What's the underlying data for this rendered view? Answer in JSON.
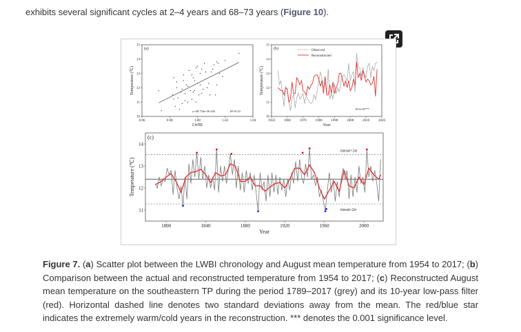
{
  "intro": {
    "text_before": "exhibits several significant cycles at 2–4 years and 68–73 years (",
    "link": "Figure 10",
    "text_after": ")."
  },
  "popout_button": {
    "icon": "external-link-icon"
  },
  "caption": {
    "label": "Figure 7.",
    "parts": [
      {
        "bold": "a",
        "text": " Scatter plot between the LWBI chronology and August mean temperature from 1954 to 2017; "
      },
      {
        "bold": "b",
        "text": " Comparison between the actual and reconstructed temperature from 1954 to 2017; "
      },
      {
        "bold": "c",
        "text": " Reconstructed August mean temperature on the southeastern TP during the period 1789–2017 (grey) and its 10-year low-pass filter (red). Horizontal dashed line denotes two standard deviations away from the mean. The red/blue star indicates the extremely warm/cold years in the reconstruction. *** denotes the 0.001 significance level."
      }
    ]
  },
  "colors": {
    "observed": "#9a9a9a",
    "reconstructed": "#e03030",
    "warm": "#e01010",
    "cold": "#1030d0",
    "grey_series": "#777777"
  },
  "chart_data": [
    {
      "type": "scatter",
      "panel": "(a)",
      "xlabel": "LWBI",
      "ylabel": "Temperature (℃)",
      "xlim": [
        0.96,
        1.04
      ],
      "ylim": [
        10,
        15
      ],
      "xticks": [
        "0.96",
        "0.98",
        "1.00",
        "1.02",
        "1.04"
      ],
      "yticks": [
        "10",
        "11",
        "12",
        "13",
        "14",
        "15"
      ],
      "equation": "y=48.754x-36.443",
      "r2": "R²=0.34",
      "fit": {
        "slope": 48.754,
        "intercept": -36.443,
        "x_range": [
          0.972,
          1.03
        ]
      },
      "points": [
        [
          0.972,
          11.8
        ],
        [
          0.974,
          10.4
        ],
        [
          0.982,
          11.5
        ],
        [
          0.983,
          12.7
        ],
        [
          0.983,
          11.2
        ],
        [
          0.984,
          10.7
        ],
        [
          0.985,
          12.4
        ],
        [
          0.985,
          12.0
        ],
        [
          0.986,
          11.3
        ],
        [
          0.987,
          10.5
        ],
        [
          0.988,
          11.7
        ],
        [
          0.989,
          11.9
        ],
        [
          0.989,
          10.9
        ],
        [
          0.99,
          12.5
        ],
        [
          0.99,
          12.9
        ],
        [
          0.991,
          11.6
        ],
        [
          0.991,
          11.1
        ],
        [
          0.992,
          12.2
        ],
        [
          0.993,
          12.1
        ],
        [
          0.993,
          11.0
        ],
        [
          0.994,
          13.2
        ],
        [
          0.995,
          11.8
        ],
        [
          0.996,
          12.9
        ],
        [
          0.996,
          11.2
        ],
        [
          0.997,
          12.7
        ],
        [
          0.997,
          11.7
        ],
        [
          0.998,
          12.5
        ],
        [
          0.998,
          11.8
        ],
        [
          0.999,
          13.4
        ],
        [
          0.999,
          11.0
        ],
        [
          1.0,
          13.5
        ],
        [
          1.0,
          12.3
        ],
        [
          1.001,
          11.5
        ],
        [
          1.002,
          13.0
        ],
        [
          1.002,
          12.2
        ],
        [
          1.003,
          13.3
        ],
        [
          1.003,
          11.6
        ],
        [
          1.004,
          11.9
        ],
        [
          1.005,
          13.7
        ],
        [
          1.006,
          13.1
        ],
        [
          1.007,
          12.0
        ],
        [
          1.008,
          12.3
        ],
        [
          1.009,
          11.5
        ],
        [
          1.01,
          13.1
        ],
        [
          1.011,
          13.3
        ],
        [
          1.012,
          13.6
        ],
        [
          1.013,
          11.5
        ],
        [
          1.014,
          12.2
        ],
        [
          1.014,
          13.8
        ],
        [
          1.015,
          13.7
        ],
        [
          1.016,
          13.0
        ],
        [
          1.018,
          12.8
        ],
        [
          1.02,
          13.9
        ],
        [
          1.03,
          14.4
        ]
      ]
    },
    {
      "type": "line",
      "panel": "(b)",
      "xlabel": "Year",
      "ylabel": "Temperature (℃)",
      "xlim": [
        1950,
        2020
      ],
      "ylim": [
        10,
        15
      ],
      "xticks": [
        "1950",
        "1960",
        "1970",
        "1980",
        "1990",
        "2000",
        "2010",
        "2020"
      ],
      "yticks": [
        "10",
        "11",
        "12",
        "13",
        "14",
        "15"
      ],
      "annotation": "R=0.59***",
      "legend_placement": "top",
      "start_year": 1954,
      "series": [
        {
          "name": "Observed",
          "values": [
            13.2,
            12.2,
            12.5,
            11.5,
            10.7,
            12.1,
            11.8,
            11.0,
            10.4,
            11.2,
            11.6,
            10.6,
            11.3,
            11.6,
            11.2,
            11.4,
            11.6,
            10.9,
            11.5,
            11.2,
            11.0,
            10.9,
            11.0,
            11.5,
            11.2,
            11.8,
            12.5,
            13.1,
            12.6,
            12.0,
            12.4,
            11.6,
            13.3,
            11.2,
            11.6,
            11.2,
            12.3,
            11.6,
            12.0,
            11.7,
            12.4,
            12.8,
            12.9,
            12.7,
            12.5,
            13.7,
            12.5,
            12.9,
            13.1,
            11.7,
            14.4,
            13.5,
            13.4,
            12.8,
            13.4,
            13.0,
            12.7,
            13.5,
            13.7,
            12.7,
            13.5,
            13.2,
            13.7,
            13.8
          ]
        },
        {
          "name": "Reconstructed",
          "values": [
            12.0,
            11.9,
            11.8,
            11.8,
            11.5,
            12.0,
            11.9,
            11.0,
            11.2,
            12.4,
            11.6,
            11.6,
            12.7,
            12.5,
            12.2,
            12.5,
            11.8,
            11.7,
            11.5,
            12.1,
            11.9,
            12.2,
            12.3,
            12.8,
            12.9,
            12.9,
            12.6,
            12.1,
            12.5,
            11.6,
            12.8,
            11.5,
            11.5,
            12.2,
            11.6,
            12.4,
            11.6,
            12.0,
            12.3,
            13.0,
            13.0,
            12.6,
            12.1,
            12.5,
            12.0,
            12.5,
            11.8,
            12.0,
            12.6,
            12.2,
            13.8,
            12.7,
            13.0,
            12.5,
            13.2,
            12.8,
            12.4,
            12.6,
            12.5,
            12.2,
            12.3,
            12.8,
            11.4,
            13.3
          ]
        }
      ]
    },
    {
      "type": "line",
      "panel": "(c)",
      "xlabel": "Year",
      "ylabel": "Temperature (℃)",
      "xlim": [
        1779,
        2019.5
      ],
      "ylim": [
        10.5,
        14.5
      ],
      "xticks": [
        "1800",
        "1840",
        "1880",
        "1920",
        "1960",
        "2000"
      ],
      "yticks": [
        "11",
        "12",
        "13",
        "14"
      ],
      "mean": 12.4,
      "mean_plus_2sigma": 13.52,
      "mean_minus_2sigma": 11.28,
      "labels": {
        "upper": "mean+2σ",
        "lower": "mean-2σ"
      },
      "reconstruction": {
        "start_year": 1789,
        "step": 2,
        "values": [
          12.2,
          12.0,
          12.5,
          12.1,
          12.4,
          12.3,
          12.9,
          12.6,
          12.8,
          11.7,
          12.8,
          12.0,
          11.5,
          12.1,
          11.2,
          12.5,
          11.5,
          13.1,
          12.2,
          13.3,
          12.5,
          13.6,
          12.4,
          13.4,
          12.4,
          13.0,
          12.0,
          12.6,
          12.0,
          12.5,
          11.9,
          13.75,
          11.8,
          13.0,
          12.3,
          13.0,
          12.2,
          12.9,
          13.55,
          12.6,
          13.3,
          12.0,
          13.0,
          11.9,
          12.7,
          11.8,
          12.8,
          12.2,
          12.7,
          11.9,
          12.6,
          11.8,
          10.95,
          12.7,
          11.9,
          12.3,
          11.4,
          12.6,
          11.6,
          12.7,
          11.8,
          12.6,
          11.7,
          12.5,
          11.9,
          12.4,
          11.6,
          12.4,
          11.9,
          12.7,
          12.2,
          13.2,
          12.3,
          13.3,
          12.5,
          12.2,
          13.1,
          12.5,
          13.8,
          12.4,
          12.6,
          12.1,
          12.5,
          11.6,
          11.9,
          11.4,
          10.95,
          11.9,
          12.7,
          11.8,
          12.4,
          11.4,
          12.3,
          11.6,
          12.4,
          12.9,
          12.4,
          12.8,
          11.5,
          12.6,
          11.6,
          12.5,
          11.8,
          13.0,
          12.2,
          12.5,
          11.8,
          13.75,
          12.5,
          13.0,
          12.3,
          12.8,
          12.2,
          11.4,
          13.3
        ]
      },
      "lowpass": {
        "years": [
          1789,
          1795,
          1800,
          1805,
          1810,
          1815,
          1820,
          1825,
          1830,
          1835,
          1840,
          1845,
          1850,
          1855,
          1860,
          1865,
          1870,
          1875,
          1880,
          1885,
          1890,
          1895,
          1900,
          1905,
          1910,
          1915,
          1920,
          1925,
          1930,
          1935,
          1940,
          1945,
          1950,
          1955,
          1960,
          1965,
          1970,
          1975,
          1980,
          1985,
          1990,
          1995,
          2000,
          2005,
          2010,
          2015,
          2017
        ],
        "values": [
          12.15,
          12.3,
          12.5,
          12.65,
          12.3,
          11.8,
          12.5,
          12.7,
          12.75,
          12.85,
          12.6,
          12.25,
          12.7,
          12.55,
          12.6,
          13.1,
          13.0,
          12.3,
          12.3,
          12.5,
          12.1,
          12.1,
          11.85,
          12.05,
          12.2,
          12.25,
          12.0,
          12.4,
          12.9,
          12.9,
          12.6,
          13.05,
          12.7,
          12.0,
          11.5,
          11.9,
          12.3,
          11.85,
          12.8,
          12.1,
          12.0,
          12.5,
          12.15,
          12.9,
          12.6,
          12.4,
          12.6
        ]
      },
      "warm_years": [
        [
          1831,
          13.6
        ],
        [
          1851,
          13.75
        ],
        [
          1866,
          13.55
        ],
        [
          1938,
          13.6
        ],
        [
          1945,
          13.8
        ],
        [
          2003,
          13.75
        ]
      ],
      "cold_years": [
        [
          1817,
          11.2
        ],
        [
          1893,
          10.95
        ],
        [
          1961,
          10.95
        ],
        [
          1962,
          11.05
        ]
      ]
    }
  ]
}
